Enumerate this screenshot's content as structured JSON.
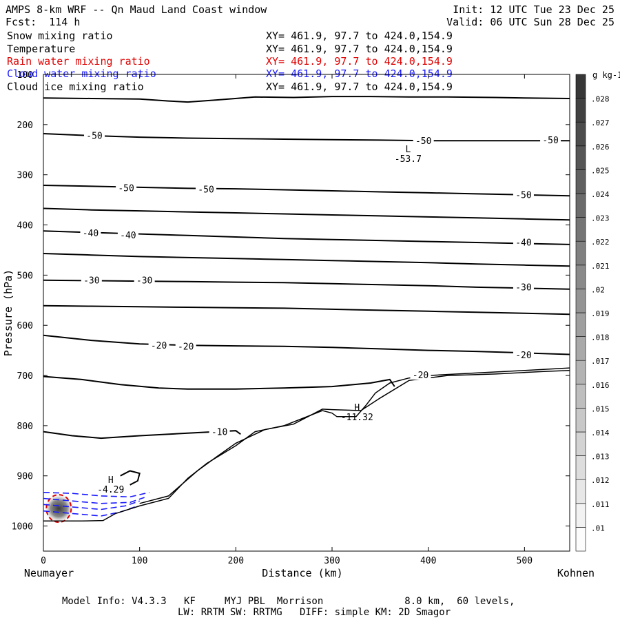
{
  "header": {
    "title": "AMPS 8-km WRF -- Qn Maud Land Coast window",
    "forecast": "Fcst:  114 h",
    "init": "Init: 12 UTC Tue 23 Dec 25",
    "valid": "Valid: 06 UTC Sun 28 Dec 25"
  },
  "fields": [
    {
      "name": "Snow mixing ratio",
      "xy": "XY= 461.9, 97.7 to 424.0,154.9",
      "color": "#000000"
    },
    {
      "name": "Temperature",
      "xy": "XY= 461.9, 97.7 to 424.0,154.9",
      "color": "#000000"
    },
    {
      "name": "Rain water mixing ratio",
      "xy": "XY= 461.9, 97.7 to 424.0,154.9",
      "color": "#e00000"
    },
    {
      "name": "Cloud water mixing ratio",
      "xy": "XY= 461.9, 97.7 to 424.0,154.9",
      "color": "#1a1aff"
    },
    {
      "name": "Cloud ice mixing ratio",
      "xy": "XY= 461.9, 97.7 to 424.0,154.9",
      "color": "#000000"
    }
  ],
  "footer": {
    "line1": "Model Info: V4.3.3   KF     MYJ PBL  Morrison              8.0 km,  60 levels,",
    "line2": "LW: RRTM SW: RRTMG   DIFF: simple KM: 2D Smagor"
  },
  "chart_data": {
    "type": "contour",
    "xlabel": "Distance (km)",
    "ylabel": "Pressure (hPa)",
    "xlim": [
      0,
      547
    ],
    "ylim": [
      1050,
      100
    ],
    "x_ticks": [
      0,
      100,
      200,
      300,
      400,
      500
    ],
    "y_ticks": [
      100,
      200,
      300,
      400,
      500,
      600,
      700,
      800,
      900,
      1000
    ],
    "left_endpoint": "Neumayer",
    "right_endpoint": "Kohnen",
    "colorbar": {
      "unit": "g kg-1",
      "levels": [
        ".01",
        ".011",
        ".012",
        ".013",
        ".014",
        ".015",
        ".016",
        ".017",
        ".018",
        ".019",
        ".02",
        ".021",
        ".022",
        ".023",
        ".024",
        ".025",
        ".026",
        ".027",
        ".028"
      ]
    },
    "isotherms": [
      {
        "x": [
          0,
          50,
          100,
          130,
          150,
          180,
          220,
          260,
          300,
          340,
          380,
          420,
          470,
          500,
          547
        ],
        "p": [
          147,
          148,
          149,
          153,
          155,
          151,
          145,
          146,
          144,
          144,
          145,
          145,
          146,
          147,
          148
        ]
      },
      {
        "x": [
          0,
          50,
          100,
          150,
          200,
          250,
          300,
          350,
          400,
          450,
          500,
          547
        ],
        "p": [
          218,
          222,
          225,
          227,
          228,
          229,
          230,
          231,
          232,
          232,
          232,
          232
        ]
      },
      {
        "x": [
          0,
          50,
          100,
          150,
          200,
          250,
          300,
          350,
          400,
          450,
          500,
          547
        ],
        "p": [
          321,
          323,
          325,
          327,
          328,
          330,
          332,
          334,
          336,
          338,
          340,
          342
        ]
      },
      {
        "x": [
          0,
          50,
          100,
          150,
          200,
          250,
          300,
          350,
          400,
          450,
          500,
          547
        ],
        "p": [
          367,
          370,
          372,
          374,
          376,
          378,
          380,
          382,
          384,
          386,
          388,
          390
        ]
      },
      {
        "x": [
          0,
          50,
          100,
          150,
          200,
          250,
          300,
          350,
          400,
          450,
          500,
          547
        ],
        "p": [
          412,
          415,
          418,
          421,
          424,
          427,
          429,
          431,
          433,
          435,
          437,
          439
        ]
      },
      {
        "x": [
          0,
          50,
          100,
          150,
          200,
          250,
          300,
          350,
          400,
          450,
          500,
          547
        ],
        "p": [
          457,
          460,
          463,
          465,
          467,
          469,
          471,
          473,
          475,
          478,
          480,
          482
        ]
      },
      {
        "x": [
          0,
          50,
          100,
          150,
          200,
          250,
          300,
          350,
          400,
          450,
          500,
          547
        ],
        "p": [
          510,
          511,
          512,
          513,
          514,
          515,
          517,
          519,
          521,
          524,
          526,
          528
        ]
      },
      {
        "x": [
          0,
          50,
          100,
          150,
          200,
          250,
          300,
          350,
          400,
          450,
          500,
          547
        ],
        "p": [
          561,
          562,
          563,
          564,
          565,
          566,
          568,
          570,
          572,
          574,
          576,
          578
        ]
      },
      {
        "x": [
          0,
          50,
          100,
          150,
          200,
          250,
          300,
          350,
          400,
          450,
          500,
          547
        ],
        "p": [
          620,
          630,
          637,
          640,
          641,
          642,
          644,
          647,
          650,
          652,
          655,
          658
        ]
      },
      {
        "x": [
          0,
          40,
          80,
          120,
          150,
          200,
          250,
          300,
          340,
          360,
          365
        ],
        "p": [
          702,
          708,
          718,
          725,
          727,
          727,
          725,
          722,
          715,
          708,
          722
        ]
      },
      {
        "x": [
          0,
          30,
          60,
          100,
          150,
          200,
          205
        ],
        "p": [
          812,
          820,
          825,
          820,
          815,
          810,
          817
        ]
      },
      {
        "x": [
          80,
          90,
          100,
          98,
          90
        ],
        "p": [
          900,
          890,
          895,
          910,
          918
        ]
      }
    ],
    "terrain_contours": [
      {
        "x": [
          0,
          40,
          62,
          75,
          100,
          130,
          150,
          170,
          200,
          220,
          250,
          270,
          290,
          300,
          305,
          325,
          335,
          345,
          360,
          380,
          400,
          450,
          500,
          547
        ],
        "p": [
          990,
          990,
          989,
          975,
          960,
          945,
          905,
          875,
          840,
          812,
          800,
          785,
          770,
          775,
          782,
          782,
          760,
          735,
          715,
          705,
          700,
          695,
          690,
          685
        ]
      },
      {
        "x": [
          100,
          130,
          160,
          180,
          200,
          230,
          260,
          290,
          300,
          330,
          350,
          380,
          420,
          470,
          520,
          547
        ],
        "p": [
          955,
          940,
          890,
          862,
          835,
          808,
          797,
          767,
          768,
          770,
          745,
          710,
          700,
          697,
          692,
          690
        ]
      }
    ],
    "contour_labels": [
      {
        "text": "-50",
        "x": 53,
        "p": 223
      },
      {
        "text": "-50",
        "x": 395,
        "p": 233
      },
      {
        "text": "-50",
        "x": 527,
        "p": 232
      },
      {
        "text": "-50",
        "x": 86,
        "p": 327
      },
      {
        "text": "-50",
        "x": 169,
        "p": 330
      },
      {
        "text": "-50",
        "x": 499,
        "p": 341
      },
      {
        "text": "-40",
        "x": 49,
        "p": 417
      },
      {
        "text": "-40",
        "x": 88,
        "p": 421
      },
      {
        "text": "-40",
        "x": 499,
        "p": 436
      },
      {
        "text": "-30",
        "x": 50,
        "p": 511
      },
      {
        "text": "-30",
        "x": 105,
        "p": 511
      },
      {
        "text": "-30",
        "x": 499,
        "p": 525
      },
      {
        "text": "-20",
        "x": 120,
        "p": 641
      },
      {
        "text": "-20",
        "x": 148,
        "p": 643
      },
      {
        "text": "-20",
        "x": 499,
        "p": 660
      },
      {
        "text": "-20",
        "x": 392,
        "p": 700
      },
      {
        "text": "-10",
        "x": 183,
        "p": 813
      }
    ],
    "extrema": [
      {
        "label": "L",
        "value": "-53.7",
        "x": 379,
        "p": 255
      },
      {
        "label": "H",
        "value": "-11.32",
        "x": 326,
        "p": 770
      },
      {
        "label": "H",
        "value": "-4.29",
        "x": 70,
        "p": 914
      }
    ],
    "snow_max_g_kg": 0.028,
    "snow_max_location": {
      "x": 16,
      "p": 965
    }
  }
}
